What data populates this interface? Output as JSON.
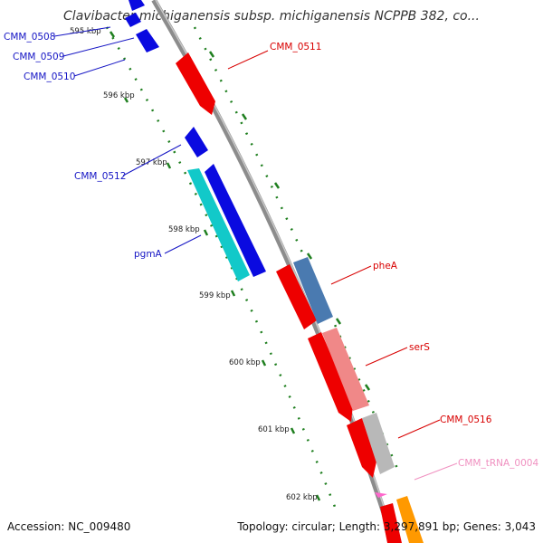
{
  "title": "Clavibacter michiganensis subsp. michiganensis NCPPB 382, co...",
  "footer": {
    "accession": "Accession: NC_009480",
    "summary": "Topology: circular; Length: 3,297,891 bp; Genes: 3,043"
  },
  "ticks": [
    "595 kbp",
    "596 kbp",
    "597 kbp",
    "598 kbp",
    "599 kbp",
    "600 kbp",
    "601 kbp",
    "602 kbp"
  ],
  "genes": [
    {
      "name": "CMM_0508",
      "color": "#1515c4"
    },
    {
      "name": "CMM_0509",
      "color": "#1515c4"
    },
    {
      "name": "CMM_0510",
      "color": "#1515c4"
    },
    {
      "name": "CMM_0511",
      "color": "#d80000"
    },
    {
      "name": "CMM_0512",
      "color": "#1515c4"
    },
    {
      "name": "pgmA",
      "color": "#1515c4"
    },
    {
      "name": "pheA",
      "color": "#d80000"
    },
    {
      "name": "serS",
      "color": "#d80000"
    },
    {
      "name": "CMM_0516",
      "color": "#d80000"
    },
    {
      "name": "CMM_tRNA_0004",
      "color": "#f090c0"
    }
  ],
  "colors": {
    "backbone": "#888888",
    "tick_dots": "#1a7a1a",
    "feature_blue": "#0a0ae0",
    "feature_red": "#ee0000",
    "feature_cyan": "#12c9c9",
    "feature_steel": "#4a7ab0",
    "feature_salmon": "#f08888",
    "feature_gray": "#b8b8b8",
    "feature_orange": "#ff9900",
    "feature_pink": "#ff66cc"
  }
}
